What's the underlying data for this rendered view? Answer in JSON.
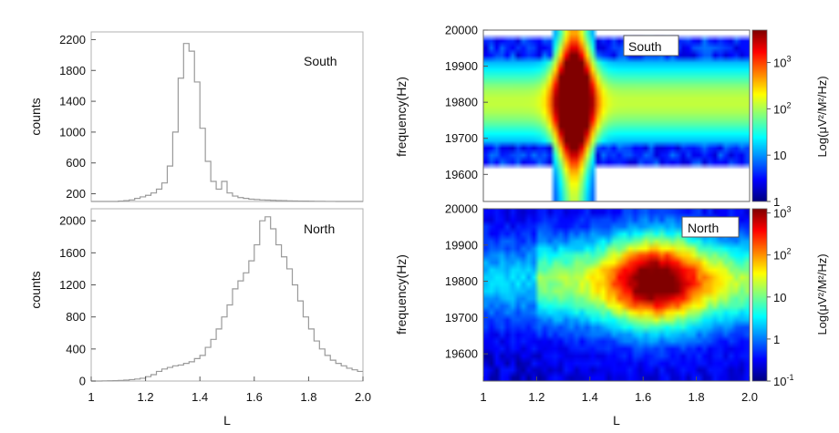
{
  "chart_data": [
    {
      "type": "bar",
      "subtype": "histogram-step",
      "panel": "top-left",
      "label": "South",
      "ylabel": "counts",
      "xlabel": "",
      "xlim": [
        1.0,
        2.0
      ],
      "ylim": [
        100,
        2300
      ],
      "yticks": [
        "200",
        "600",
        "1000",
        "1400",
        "1800",
        "2200"
      ],
      "xticks": [],
      "bin_width": 0.02,
      "x": [
        1.0,
        1.02,
        1.04,
        1.06,
        1.08,
        1.1,
        1.12,
        1.14,
        1.16,
        1.18,
        1.2,
        1.22,
        1.24,
        1.26,
        1.28,
        1.3,
        1.32,
        1.34,
        1.36,
        1.38,
        1.4,
        1.42,
        1.44,
        1.46,
        1.48,
        1.5,
        1.52,
        1.54,
        1.56,
        1.58,
        1.6,
        1.62,
        1.64,
        1.66,
        1.68,
        1.7,
        1.72,
        1.74,
        1.76,
        1.78,
        1.8,
        1.82,
        1.84,
        1.86,
        1.88,
        1.9,
        1.92,
        1.94,
        1.96,
        1.98
      ],
      "values": [
        100,
        100,
        100,
        100,
        100,
        105,
        110,
        120,
        140,
        160,
        180,
        210,
        260,
        340,
        560,
        1000,
        1700,
        2150,
        2050,
        1650,
        1050,
        620,
        360,
        260,
        360,
        210,
        170,
        150,
        140,
        130,
        125,
        120,
        118,
        115,
        112,
        110,
        108,
        106,
        105,
        104,
        103,
        102,
        102,
        101,
        101,
        100,
        100,
        100,
        100,
        100
      ],
      "color": "#9a9a9a"
    },
    {
      "type": "bar",
      "subtype": "histogram-step",
      "panel": "bottom-left",
      "label": "North",
      "ylabel": "counts",
      "xlabel": "L",
      "xlim": [
        1.0,
        2.0
      ],
      "ylim": [
        0,
        2150
      ],
      "yticks": [
        "0",
        "400",
        "800",
        "1200",
        "1600",
        "2000"
      ],
      "xticks": [
        "1",
        "1.2",
        "1.4",
        "1.6",
        "1.8",
        "2.0"
      ],
      "bin_width": 0.02,
      "x": [
        1.0,
        1.02,
        1.04,
        1.06,
        1.08,
        1.1,
        1.12,
        1.14,
        1.16,
        1.18,
        1.2,
        1.22,
        1.24,
        1.26,
        1.28,
        1.3,
        1.32,
        1.34,
        1.36,
        1.38,
        1.4,
        1.42,
        1.44,
        1.46,
        1.48,
        1.5,
        1.52,
        1.54,
        1.56,
        1.58,
        1.6,
        1.62,
        1.64,
        1.66,
        1.68,
        1.7,
        1.72,
        1.74,
        1.76,
        1.78,
        1.8,
        1.82,
        1.84,
        1.86,
        1.88,
        1.9,
        1.92,
        1.94,
        1.96,
        1.98
      ],
      "values": [
        0,
        0,
        2,
        3,
        5,
        8,
        12,
        18,
        25,
        35,
        55,
        80,
        120,
        150,
        170,
        190,
        200,
        220,
        240,
        280,
        320,
        420,
        520,
        650,
        800,
        950,
        1150,
        1250,
        1350,
        1500,
        1700,
        2000,
        2050,
        1900,
        1700,
        1550,
        1400,
        1200,
        1000,
        800,
        650,
        500,
        400,
        320,
        260,
        220,
        190,
        160,
        140,
        120
      ],
      "color": "#9a9a9a"
    },
    {
      "type": "heatmap",
      "panel": "top-right",
      "label": "South",
      "ylabel": "frequency(Hz)",
      "xlabel": "",
      "xlim": [
        1.0,
        2.0
      ],
      "ylim": [
        19525,
        20000
      ],
      "yticks": [
        "19600",
        "19700",
        "19800",
        "19900",
        "20000"
      ],
      "xticks": [],
      "colorbar": {
        "label": "Log(μV²/M²/Hz)",
        "log_range": [
          0,
          3.7
        ],
        "ticks": [
          {
            "log": 0,
            "base": "1",
            "exp": ""
          },
          {
            "log": 1,
            "base": "10",
            "exp": ""
          },
          {
            "log": 2,
            "base": "10",
            "exp": "2"
          },
          {
            "log": 3,
            "base": "10",
            "exp": "3"
          }
        ]
      },
      "peak": {
        "L": 1.34,
        "freq": 19800,
        "log_max": 3.7
      },
      "background_log": 0.6
    },
    {
      "type": "heatmap",
      "panel": "bottom-right",
      "label": "North",
      "ylabel": "frequency(Hz)",
      "xlabel": "L",
      "xlim": [
        1.0,
        2.0
      ],
      "ylim": [
        19525,
        20000
      ],
      "yticks": [
        "19600",
        "19700",
        "19800",
        "19900",
        "20000"
      ],
      "xticks": [
        "1",
        "1.2",
        "1.4",
        "1.6",
        "1.8",
        "2.0"
      ],
      "colorbar": {
        "label": "Log(μV²/M²/Hz)",
        "log_range": [
          -1,
          3.1
        ],
        "ticks": [
          {
            "log": -1,
            "base": "10",
            "exp": "-1"
          },
          {
            "log": 0,
            "base": "1",
            "exp": ""
          },
          {
            "log": 1,
            "base": "10",
            "exp": ""
          },
          {
            "log": 2,
            "base": "10",
            "exp": "2"
          },
          {
            "log": 3,
            "base": "10",
            "exp": "3"
          }
        ]
      },
      "peak": {
        "L": 1.65,
        "freq": 19800,
        "log_max": 3.1
      },
      "background_log": -0.7
    }
  ]
}
